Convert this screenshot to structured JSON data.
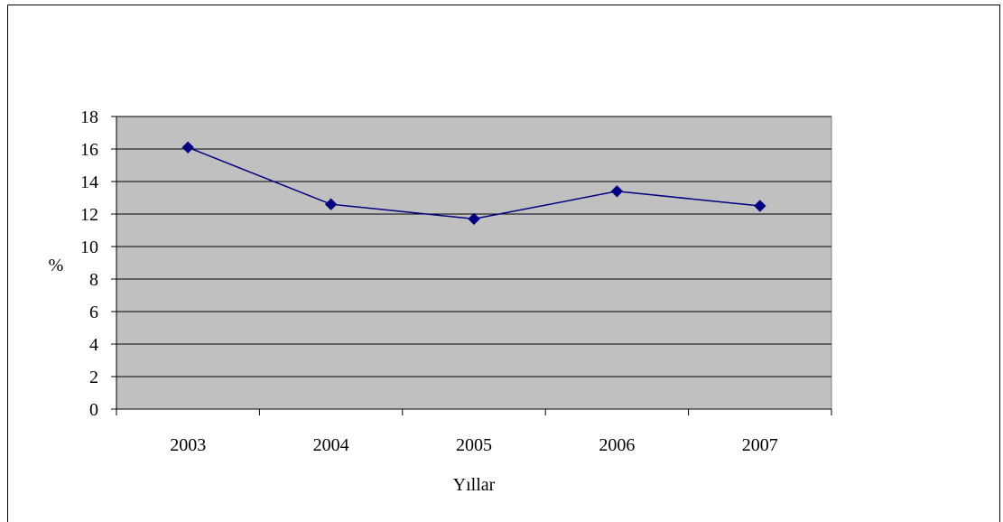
{
  "chart_data": {
    "type": "line",
    "title": "",
    "xlabel": "Yıllar",
    "ylabel": "%",
    "categories": [
      "2003",
      "2004",
      "2005",
      "2006",
      "2007"
    ],
    "series": [
      {
        "values": [
          16.1,
          12.6,
          11.7,
          13.4,
          12.5
        ],
        "color": "#000080"
      }
    ],
    "ylim": [
      0,
      18
    ],
    "yticks": [
      "0",
      "2",
      "4",
      "6",
      "8",
      "10",
      "12",
      "14",
      "16",
      "18"
    ],
    "grid": true,
    "legend": "none",
    "plot_background": "#c0c0c0",
    "marker": "diamond"
  }
}
